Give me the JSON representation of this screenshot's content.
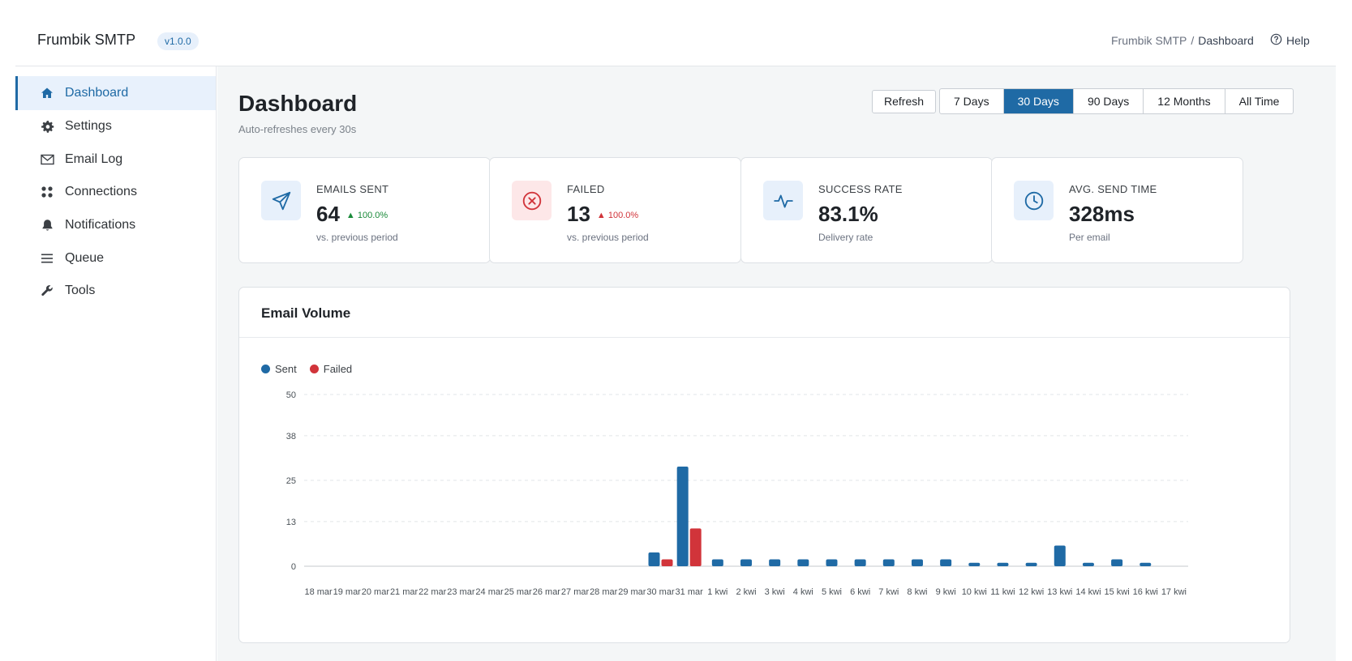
{
  "header": {
    "brand": "Frumbik SMTP",
    "version": "v1.0.0",
    "breadcrumb_root": "Frumbik SMTP",
    "breadcrumb_sep": "/",
    "breadcrumb_current": "Dashboard",
    "help_label": "Help"
  },
  "sidebar": {
    "items": [
      {
        "label": "Dashboard",
        "icon": "home-icon",
        "active": true
      },
      {
        "label": "Settings",
        "icon": "gear-icon",
        "active": false
      },
      {
        "label": "Email Log",
        "icon": "envelope-icon",
        "active": false
      },
      {
        "label": "Connections",
        "icon": "grid-dots-icon",
        "active": false
      },
      {
        "label": "Notifications",
        "icon": "bell-icon",
        "active": false
      },
      {
        "label": "Queue",
        "icon": "list-icon",
        "active": false
      },
      {
        "label": "Tools",
        "icon": "wrench-icon",
        "active": false
      }
    ]
  },
  "main": {
    "title": "Dashboard",
    "subtitle": "Auto-refreshes every 30s",
    "refresh_label": "Refresh",
    "ranges": [
      {
        "label": "7 Days",
        "active": false
      },
      {
        "label": "30 Days",
        "active": true
      },
      {
        "label": "90 Days",
        "active": false
      },
      {
        "label": "12 Months",
        "active": false
      },
      {
        "label": "All Time",
        "active": false
      }
    ]
  },
  "stats": [
    {
      "label": "EMAILS SENT",
      "value": "64",
      "trend": "100.0%",
      "trend_color": "#1a8a3a",
      "note": "vs. previous period",
      "icon": "send-icon",
      "icon_bg": "#e7f0fb",
      "icon_color": "#1f6aa5"
    },
    {
      "label": "FAILED",
      "value": "13",
      "trend": "100.0%",
      "trend_color": "#d1343a",
      "note": "vs. previous period",
      "icon": "x-circle-icon",
      "icon_bg": "#fde7e8",
      "icon_color": "#d1343a"
    },
    {
      "label": "SUCCESS RATE",
      "value": "83.1%",
      "trend": "",
      "trend_color": "",
      "note": "Delivery rate",
      "icon": "activity-icon",
      "icon_bg": "#e7f0fb",
      "icon_color": "#1f6aa5"
    },
    {
      "label": "AVG. SEND TIME",
      "value": "328ms",
      "trend": "",
      "trend_color": "",
      "note": "Per email",
      "icon": "clock-icon",
      "icon_bg": "#e7f0fb",
      "icon_color": "#1f6aa5"
    }
  ],
  "chart": {
    "title": "Email Volume"
  },
  "chart_data": {
    "type": "bar",
    "title": "Email Volume",
    "categories": [
      "18 mar",
      "19 mar",
      "20 mar",
      "21 mar",
      "22 mar",
      "23 mar",
      "24 mar",
      "25 mar",
      "26 mar",
      "27 mar",
      "28 mar",
      "29 mar",
      "30 mar",
      "31 mar",
      "1 kwi",
      "2 kwi",
      "3 kwi",
      "4 kwi",
      "5 kwi",
      "6 kwi",
      "7 kwi",
      "8 kwi",
      "9 kwi",
      "10 kwi",
      "11 kwi",
      "12 kwi",
      "13 kwi",
      "14 kwi",
      "15 kwi",
      "16 kwi",
      "17 kwi"
    ],
    "series": [
      {
        "name": "Sent",
        "color": "#1f6aa5",
        "values": [
          0,
          0,
          0,
          0,
          0,
          0,
          0,
          0,
          0,
          0,
          0,
          0,
          4,
          29,
          2,
          2,
          2,
          2,
          2,
          2,
          2,
          2,
          2,
          1,
          1,
          1,
          6,
          1,
          2,
          1,
          0
        ]
      },
      {
        "name": "Failed",
        "color": "#d1343a",
        "values": [
          0,
          0,
          0,
          0,
          0,
          0,
          0,
          0,
          0,
          0,
          0,
          0,
          2,
          11,
          0,
          0,
          0,
          0,
          0,
          0,
          0,
          0,
          0,
          0,
          0,
          0,
          0,
          0,
          0,
          0,
          0
        ]
      }
    ],
    "yticks": [
      0,
      13,
      25,
      38,
      50
    ],
    "ylim": [
      0,
      50
    ],
    "grid": true,
    "legend_position": "top-left"
  }
}
